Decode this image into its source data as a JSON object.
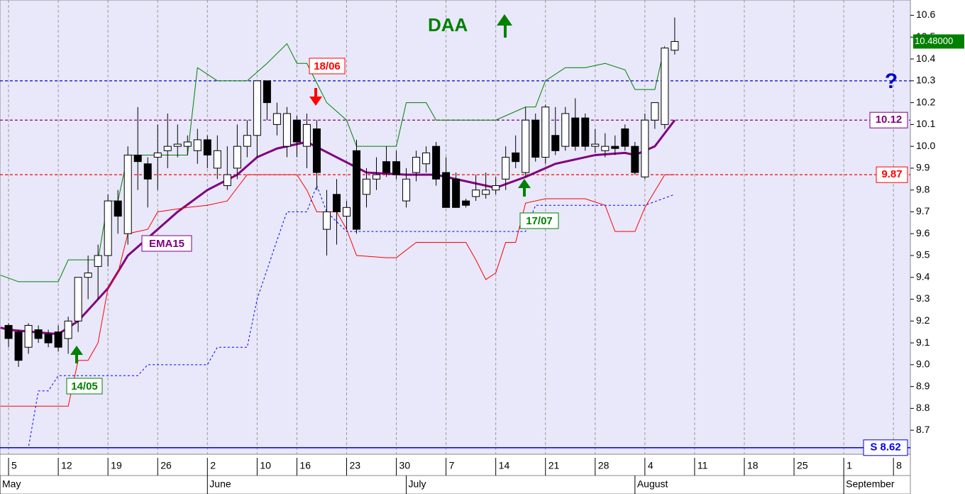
{
  "chart_data": {
    "type": "candlestick",
    "title": "DAA",
    "x": [
      0,
      1,
      2,
      3,
      4,
      5,
      6,
      7,
      8,
      9,
      10,
      11,
      12,
      13,
      14,
      15,
      16,
      17,
      18,
      19,
      20,
      21,
      22,
      23,
      24,
      25,
      26,
      27,
      28,
      29,
      30,
      31,
      32,
      33,
      34,
      35,
      36,
      37,
      38,
      39,
      40,
      41,
      42,
      43,
      44,
      45,
      46,
      47,
      48,
      49,
      50,
      51,
      52,
      53,
      54,
      55,
      56,
      57,
      58,
      59,
      60,
      61,
      62,
      63,
      64,
      65,
      66,
      67
    ],
    "open": [
      9.18,
      9.15,
      9.08,
      9.16,
      9.14,
      9.15,
      9.12,
      9.2,
      9.4,
      9.45,
      9.5,
      9.75,
      9.6,
      9.96,
      9.92,
      9.95,
      9.98,
      10.0,
      10.0,
      9.98,
      10.03,
      9.9,
      9.82,
      9.9,
      10.0,
      10.05,
      10.3,
      10.1,
      10.0,
      10.12,
      10.0,
      10.08,
      9.62,
      9.78,
      9.68,
      9.98,
      9.78,
      9.85,
      9.93,
      9.93,
      9.75,
      9.88,
      9.92,
      10.0,
      9.88,
      9.85,
      9.75,
      9.77,
      9.78,
      9.8,
      9.85,
      9.97,
      9.88,
      10.12,
      9.95,
      10.05,
      10.0,
      10.13,
      10.13,
      10.0,
      9.98,
      10.0,
      10.08,
      10.0,
      9.86,
      10.12,
      10.1,
      10.44
    ],
    "high": [
      9.19,
      9.16,
      9.19,
      9.18,
      9.16,
      9.18,
      9.22,
      9.4,
      9.5,
      9.55,
      9.78,
      9.8,
      10.0,
      10.18,
      9.95,
      10.1,
      10.15,
      10.1,
      10.05,
      10.08,
      10.05,
      10.05,
      10.0,
      10.1,
      10.12,
      10.3,
      10.3,
      10.2,
      10.18,
      10.14,
      10.15,
      10.12,
      9.8,
      9.85,
      9.75,
      10.03,
      9.9,
      9.95,
      10.0,
      9.98,
      9.9,
      9.98,
      10.0,
      10.02,
      9.95,
      9.88,
      9.76,
      9.87,
      9.88,
      9.86,
      10.0,
      10.05,
      10.18,
      10.15,
      10.19,
      10.18,
      10.18,
      10.22,
      10.15,
      10.08,
      10.06,
      10.05,
      10.1,
      10.02,
      10.15,
      10.2,
      10.45,
      10.59
    ],
    "low": [
      9.08,
      8.99,
      9.05,
      9.1,
      9.08,
      9.06,
      9.05,
      9.15,
      9.3,
      9.3,
      9.45,
      9.6,
      9.55,
      9.8,
      9.72,
      9.8,
      9.9,
      9.95,
      9.96,
      9.92,
      9.9,
      9.85,
      9.8,
      9.85,
      9.95,
      9.95,
      10.12,
      10.05,
      9.95,
      9.95,
      9.9,
      9.8,
      9.5,
      9.55,
      9.62,
      9.6,
      9.72,
      9.8,
      9.86,
      9.85,
      9.72,
      9.84,
      9.88,
      9.82,
      9.72,
      9.72,
      9.72,
      9.75,
      9.76,
      9.78,
      9.8,
      9.9,
      9.86,
      9.93,
      9.92,
      9.96,
      9.98,
      9.98,
      9.98,
      9.97,
      9.95,
      9.96,
      9.98,
      9.87,
      9.85,
      10.08,
      10.08,
      10.42
    ],
    "close": [
      9.12,
      9.02,
      9.18,
      9.12,
      9.1,
      9.08,
      9.2,
      9.4,
      9.42,
      9.5,
      9.75,
      9.68,
      9.96,
      9.93,
      9.85,
      9.97,
      10.0,
      10.01,
      10.02,
      10.03,
      9.96,
      9.98,
      9.87,
      10.0,
      10.05,
      10.3,
      10.2,
      10.15,
      10.15,
      10.02,
      10.1,
      9.88,
      9.7,
      9.7,
      9.72,
      9.62,
      9.85,
      9.87,
      9.88,
      9.87,
      9.85,
      9.95,
      9.97,
      9.85,
      9.72,
      9.72,
      9.73,
      9.8,
      9.8,
      9.82,
      9.95,
      9.93,
      10.12,
      9.95,
      10.18,
      9.98,
      10.15,
      10.0,
      10.0,
      10.01,
      10.0,
      9.99,
      10.0,
      9.88,
      10.12,
      10.2,
      10.45,
      10.48
    ],
    "lines": [
      {
        "name": "EMA15",
        "color": "#800080",
        "width": 3,
        "dash": false,
        "x": [
          -0.8,
          0,
          5,
          7,
          10,
          12,
          15,
          17,
          20,
          23,
          25,
          27,
          30,
          33,
          36,
          40,
          43,
          46,
          49,
          52,
          55,
          59,
          62,
          63,
          65,
          67
        ],
        "values": [
          9.17,
          9.16,
          9.14,
          9.2,
          9.35,
          9.5,
          9.62,
          9.7,
          9.8,
          9.87,
          9.95,
          9.99,
          10.02,
          9.95,
          9.88,
          9.87,
          9.87,
          9.84,
          9.81,
          9.86,
          9.92,
          9.96,
          9.97,
          9.96,
          10.0,
          10.12
        ]
      },
      {
        "color": "#008000",
        "width": 1,
        "dash": false,
        "x": [
          -0.8,
          1,
          5,
          6,
          9,
          10,
          11,
          12,
          18,
          19,
          21,
          24,
          26,
          28,
          29,
          30,
          32,
          34,
          35,
          39,
          40,
          42,
          43,
          49,
          52,
          53,
          54,
          56,
          58,
          60,
          62,
          63,
          65,
          66
        ],
        "values": [
          9.41,
          9.38,
          9.38,
          9.48,
          9.48,
          9.75,
          9.75,
          9.96,
          9.96,
          10.36,
          10.3,
          10.3,
          10.38,
          10.47,
          10.38,
          10.38,
          10.2,
          10.12,
          10.0,
          10.0,
          10.2,
          10.2,
          10.12,
          10.12,
          10.18,
          10.18,
          10.3,
          10.36,
          10.36,
          10.38,
          10.35,
          10.26,
          10.26,
          10.46
        ]
      },
      {
        "color": "#ff0000",
        "width": 1,
        "dash": false,
        "x": [
          -0.8,
          6,
          7,
          8,
          9,
          10,
          11,
          12,
          14,
          15,
          18,
          20,
          22,
          23,
          24,
          29,
          30,
          31,
          33,
          34,
          35,
          38,
          39,
          41,
          46,
          47,
          48,
          49,
          50,
          51,
          52,
          54,
          58,
          60,
          61,
          63,
          64,
          66,
          67
        ],
        "values": [
          8.81,
          8.81,
          9.02,
          9.02,
          9.1,
          9.35,
          9.42,
          9.6,
          9.62,
          9.7,
          9.72,
          9.73,
          9.75,
          9.81,
          9.87,
          9.87,
          9.8,
          9.7,
          9.7,
          9.62,
          9.5,
          9.49,
          9.49,
          9.56,
          9.56,
          9.48,
          9.39,
          9.42,
          9.56,
          9.56,
          9.74,
          9.76,
          9.76,
          9.73,
          9.61,
          9.61,
          9.72,
          9.87,
          9.87
        ]
      },
      {
        "color": "#0000ff",
        "width": 1,
        "dash": true,
        "x": [
          -0.8,
          2,
          3,
          4,
          5,
          13,
          14,
          20,
          21,
          24,
          25,
          27,
          28,
          30,
          31,
          32,
          34,
          52,
          53,
          64,
          67
        ],
        "values": [
          8.62,
          8.62,
          8.88,
          8.88,
          8.95,
          8.95,
          9.0,
          9.0,
          9.08,
          9.08,
          9.3,
          9.57,
          9.7,
          9.7,
          9.82,
          9.7,
          9.61,
          9.61,
          9.73,
          9.73,
          9.78
        ]
      }
    ],
    "levels": [
      {
        "value": 10.3,
        "label": "?",
        "color": "#0000cc",
        "dash": true,
        "box": false
      },
      {
        "value": 10.12,
        "label": "10.12",
        "color": "#800080",
        "dash": true,
        "box": true
      },
      {
        "value": 9.87,
        "label": "9.87",
        "color": "#ff0000",
        "dash": true,
        "box": true
      },
      {
        "value": 8.62,
        "label": "S 8.62",
        "color": "#0000ff",
        "dash": false,
        "box": true
      }
    ],
    "last": {
      "value": 10.48,
      "label": "10.48000"
    },
    "annotations": [
      "14/05",
      "18/06",
      "17/07"
    ],
    "xlim": [
      -0.86,
      90.7
    ],
    "ylim": [
      8.59,
      10.67
    ],
    "yticks": [
      8.7,
      8.8,
      8.9,
      {
        "value": 9.0,
        "label": "9.0"
      },
      9.1,
      9.2,
      9.3,
      9.4,
      9.5,
      9.6,
      9.7,
      9.8,
      9.9,
      {
        "value": 10.0,
        "label": "10.0"
      },
      10.1,
      10.2,
      10.3,
      10.4,
      10.5,
      10.6
    ],
    "xticks": [
      {
        "value": 0,
        "label": "5"
      },
      {
        "value": 5,
        "label": "12"
      },
      {
        "value": 10,
        "label": "19"
      },
      {
        "value": 15,
        "label": "26"
      },
      {
        "value": 20,
        "label": "2"
      },
      {
        "value": 25,
        "label": "10"
      },
      {
        "value": 29,
        "label": "16"
      },
      {
        "value": 34,
        "label": "23"
      },
      {
        "value": 39,
        "label": "30"
      },
      {
        "value": 44,
        "label": "7"
      },
      {
        "value": 49,
        "label": "14"
      },
      {
        "value": 54,
        "label": "21"
      },
      {
        "value": 59,
        "label": "28"
      },
      {
        "value": 64,
        "label": "4"
      },
      {
        "value": 69,
        "label": "11"
      },
      {
        "value": 74,
        "label": "18"
      },
      {
        "value": 79,
        "label": "25"
      },
      {
        "value": 84,
        "label": "1"
      },
      {
        "value": 89,
        "label": "8"
      }
    ],
    "months": [
      {
        "value": -0.86,
        "label": "May"
      },
      {
        "value": 20,
        "label": "June"
      },
      {
        "value": 40,
        "label": "July"
      },
      {
        "value": 63,
        "label": "August"
      },
      {
        "value": 84,
        "label": "September"
      }
    ],
    "grid": true
  }
}
